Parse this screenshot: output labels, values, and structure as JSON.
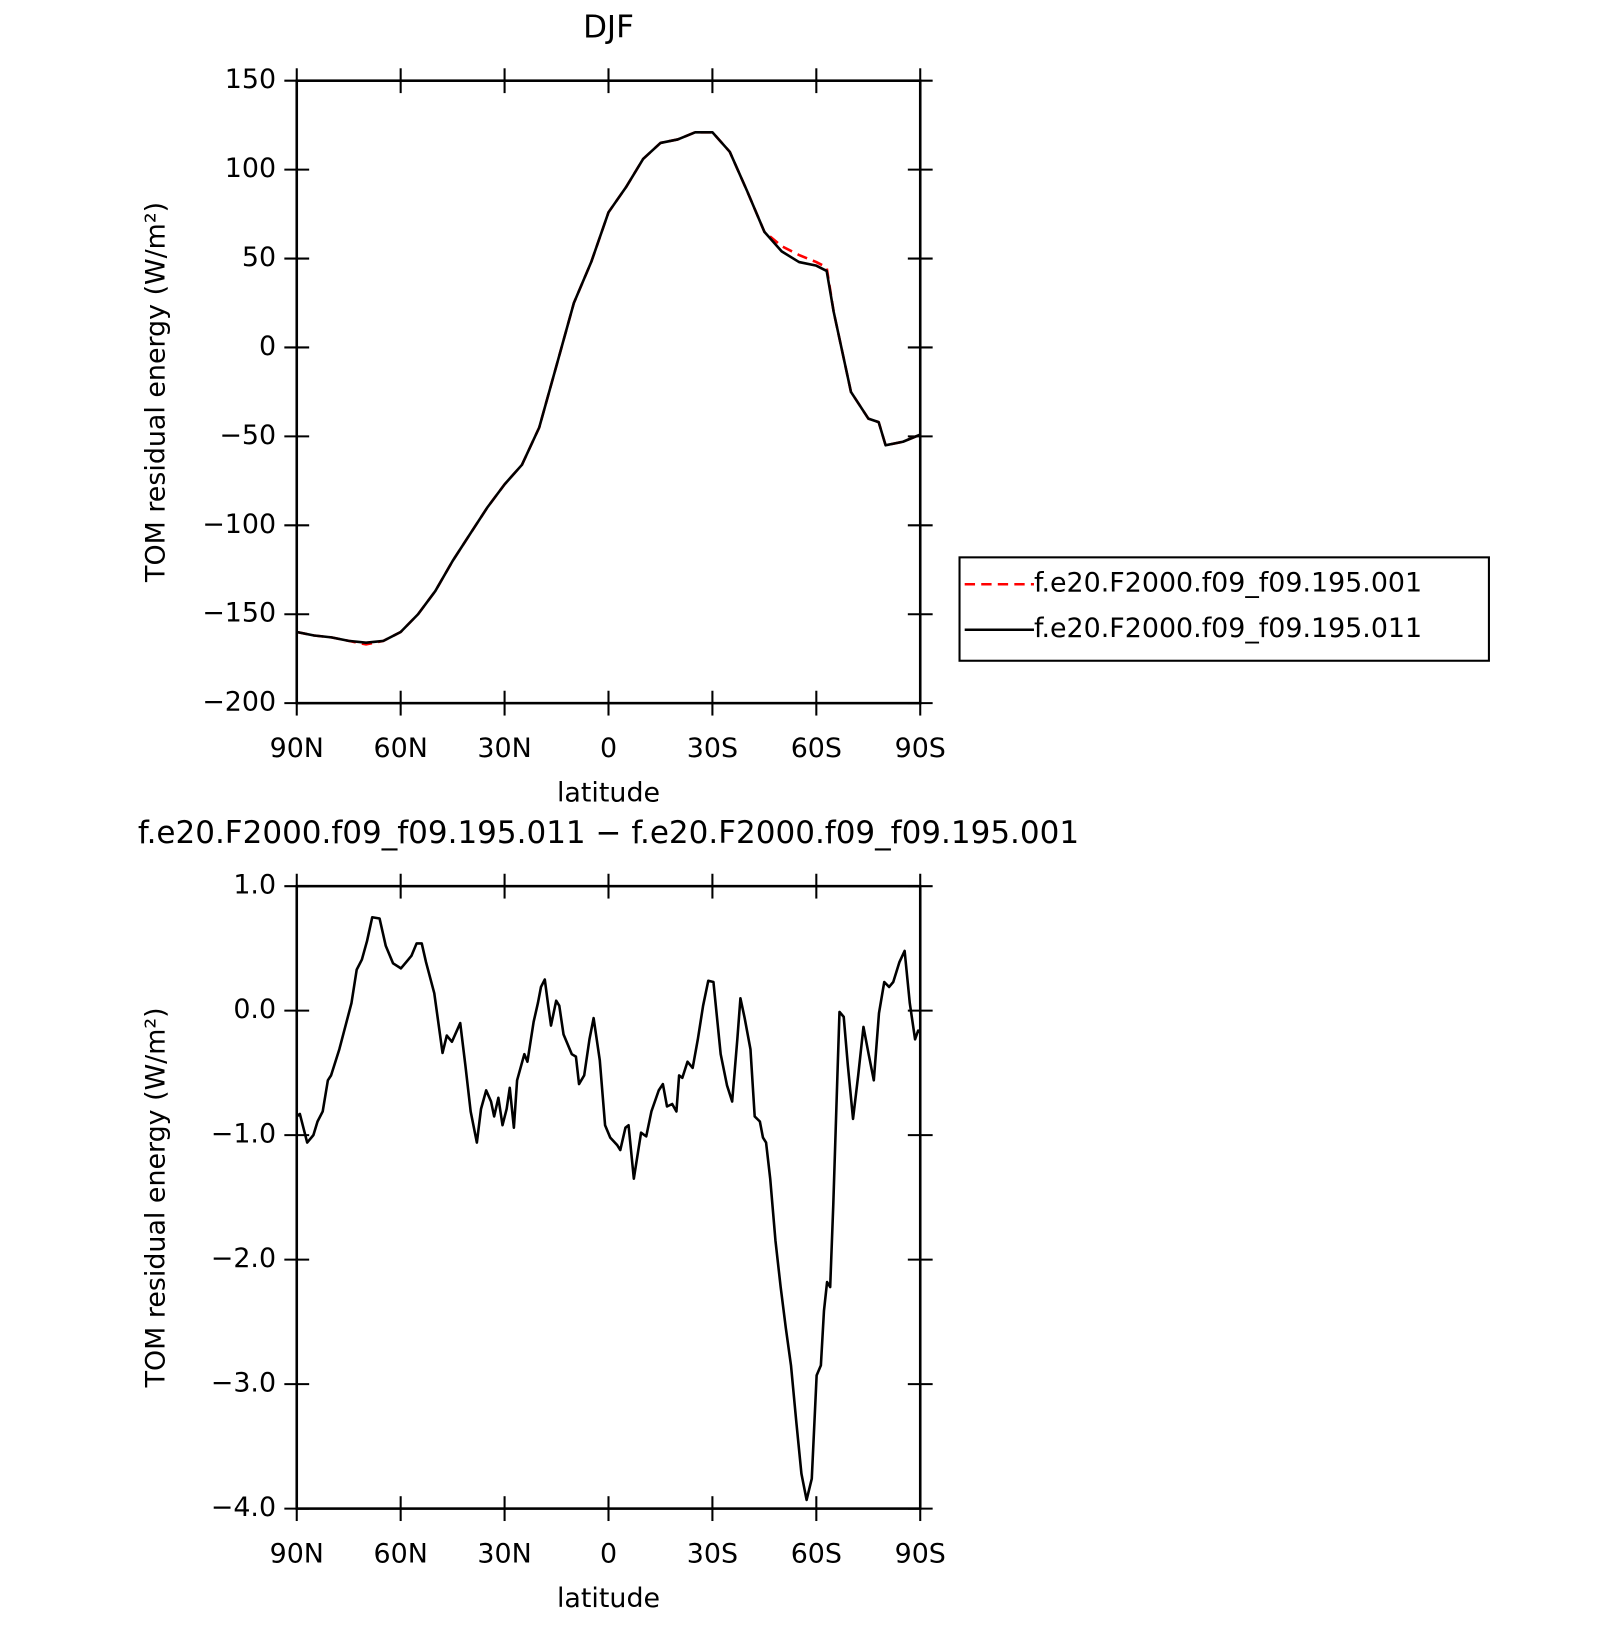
{
  "chart_data": [
    {
      "type": "line",
      "title": "DJF",
      "xlabel": "latitude",
      "ylabel": "TOM residual energy (W/m²)",
      "xlim": [
        90,
        -90
      ],
      "xticks": [
        {
          "value": 90,
          "label": "90N"
        },
        {
          "value": 60,
          "label": "60N"
        },
        {
          "value": 30,
          "label": "30N"
        },
        0,
        {
          "value": -30,
          "label": "30S"
        },
        {
          "value": -60,
          "label": "60S"
        },
        {
          "value": -90,
          "label": "90S"
        }
      ],
      "ylim": [
        -200,
        150
      ],
      "yticks": [
        {
          "value": -200,
          "label": "−200"
        },
        {
          "value": -150,
          "label": "−150"
        },
        {
          "value": -100,
          "label": "−100"
        },
        {
          "value": -50,
          "label": "−50"
        },
        0,
        50,
        100,
        150
      ],
      "legend": "right",
      "x": [
        90,
        85,
        80,
        75,
        70,
        65,
        60,
        55,
        50,
        45,
        40,
        35,
        30,
        25,
        20,
        15,
        10,
        5,
        0,
        -5,
        -10,
        -15,
        -20,
        -25,
        -30,
        -35,
        -40,
        -45,
        -50,
        -55,
        -60,
        -63,
        -65,
        -70,
        -75,
        -78,
        -80,
        -85,
        -90
      ],
      "series": [
        {
          "name": "f.e20.F2000.f09_f09.195.001",
          "color": "#ff0000",
          "line_style": "dashed",
          "values": [
            -160,
            -162,
            -163,
            -165,
            -167,
            -165,
            -160,
            -150,
            -137,
            -120,
            -105,
            -90,
            -77,
            -66,
            -45,
            -10,
            25,
            48,
            76,
            90,
            106,
            115,
            117,
            121,
            121,
            110,
            88,
            65,
            57,
            52,
            48,
            45,
            20,
            -25,
            -40,
            -42,
            -55,
            -53,
            -49
          ]
        },
        {
          "name": "f.e20.F2000.f09_f09.195.011",
          "color": "#000000",
          "line_style": "solid",
          "values": [
            -160,
            -162,
            -163,
            -165,
            -166,
            -165,
            -160,
            -150,
            -137,
            -120,
            -105,
            -90,
            -77,
            -66,
            -45,
            -10,
            25,
            48,
            76,
            90,
            106,
            115,
            117,
            121,
            121,
            110,
            88,
            65,
            54,
            48,
            46,
            43,
            20,
            -25,
            -40,
            -42,
            -55,
            -53,
            -49
          ]
        }
      ]
    },
    {
      "type": "line",
      "title": "f.e20.F2000.f09_f09.195.011 − f.e20.F2000.f09_f09.195.001",
      "xlabel": "latitude",
      "ylabel": "TOM residual energy (W/m²)",
      "xlim": [
        90,
        -90
      ],
      "xticks": [
        {
          "value": 90,
          "label": "90N"
        },
        {
          "value": 60,
          "label": "60N"
        },
        {
          "value": 30,
          "label": "30N"
        },
        0,
        {
          "value": -30,
          "label": "30S"
        },
        {
          "value": -60,
          "label": "60S"
        },
        {
          "value": -90,
          "label": "90S"
        }
      ],
      "ylim": [
        -4,
        1
      ],
      "yticks": [
        {
          "value": -4,
          "label": "−4.0"
        },
        {
          "value": -3,
          "label": "−3.0"
        },
        {
          "value": -2,
          "label": "−2.0"
        },
        {
          "value": -1,
          "label": "−1.0"
        },
        {
          "value": 0,
          "label": "0.0"
        },
        {
          "value": 1,
          "label": "1.0"
        }
      ],
      "x": [
        90,
        89.1,
        87.0,
        85.2,
        84.0,
        82.5,
        81.0,
        80.1,
        77.7,
        74.2,
        72.7,
        71.2,
        69.7,
        68.2,
        66.1,
        64.3,
        62.2,
        59.9,
        58.4,
        56.9,
        55.4,
        53.9,
        52.7,
        50.3,
        47.9,
        46.7,
        45.2,
        42.8,
        41.3,
        39.8,
        38.0,
        36.8,
        35.3,
        33.9,
        33.0,
        31.8,
        30.6,
        29.4,
        28.5,
        27.3,
        26.4,
        24.3,
        23.4,
        21.6,
        20.4,
        19.5,
        18.4,
        17.5,
        16.6,
        15.1,
        14.2,
        13.0,
        10.6,
        9.4,
        8.5,
        7.0,
        5.5,
        4.3,
        2.5,
        1.0,
        -0.5,
        -2.5,
        -3.4,
        -4.9,
        -5.8,
        -7.3,
        -9.4,
        -10.9,
        -12.4,
        -14.5,
        -15.7,
        -16.9,
        -18.4,
        -19.6,
        -20.4,
        -21.3,
        -22.8,
        -24.3,
        -25.8,
        -27.3,
        -28.8,
        -30.3,
        -32.4,
        -34.2,
        -35.7,
        -37.2,
        -38.1,
        -39.3,
        -41.0,
        -42.2,
        -43.7,
        -44.6,
        -45.5,
        -46.7,
        -48.2,
        -49.7,
        -51.2,
        -52.7,
        -54.2,
        -55.7,
        -57.2,
        -58.7,
        -60.1,
        -61.3,
        -62.2,
        -63.1,
        -64.0,
        -64.9,
        -66.1,
        -66.7,
        -67.9,
        -69.1,
        -70.6,
        -72.1,
        -73.6,
        -75.1,
        -76.6,
        -78.1,
        -79.6,
        -81.0,
        -82.2,
        -84.0,
        -85.5,
        -87.0,
        -88.5,
        -89.4,
        -90
      ],
      "series": [
        {
          "name": "f.e20.F2000.f09_f09.195.011 − f.e20.F2000.f09_f09.195.001",
          "color": "#000000",
          "line_style": "solid",
          "values": [
            -0.85,
            -0.83,
            -1.06,
            -1.0,
            -0.89,
            -0.81,
            -0.56,
            -0.52,
            -0.31,
            0.06,
            0.33,
            0.41,
            0.56,
            0.75,
            0.74,
            0.52,
            0.38,
            0.34,
            0.39,
            0.44,
            0.54,
            0.54,
            0.39,
            0.14,
            -0.34,
            -0.2,
            -0.25,
            -0.1,
            -0.44,
            -0.81,
            -1.06,
            -0.79,
            -0.64,
            -0.73,
            -0.85,
            -0.7,
            -0.92,
            -0.79,
            -0.62,
            -0.94,
            -0.56,
            -0.35,
            -0.41,
            -0.09,
            0.06,
            0.19,
            0.25,
            0.06,
            -0.12,
            0.08,
            0.04,
            -0.19,
            -0.35,
            -0.37,
            -0.59,
            -0.52,
            -0.23,
            -0.06,
            -0.4,
            -0.92,
            -1.02,
            -1.08,
            -1.12,
            -0.94,
            -0.92,
            -1.35,
            -0.98,
            -1.01,
            -0.81,
            -0.64,
            -0.59,
            -0.77,
            -0.75,
            -0.81,
            -0.52,
            -0.54,
            -0.41,
            -0.46,
            -0.23,
            0.04,
            0.24,
            0.23,
            -0.35,
            -0.6,
            -0.73,
            -0.23,
            0.1,
            -0.06,
            -0.31,
            -0.85,
            -0.89,
            -1.02,
            -1.06,
            -1.35,
            -1.85,
            -2.22,
            -2.55,
            -2.85,
            -3.3,
            -3.72,
            -3.93,
            -3.76,
            -2.93,
            -2.85,
            -2.41,
            -2.18,
            -2.22,
            -1.56,
            -0.52,
            -0.01,
            -0.05,
            -0.44,
            -0.87,
            -0.52,
            -0.13,
            -0.35,
            -0.56,
            -0.02,
            0.23,
            0.19,
            0.23,
            0.39,
            0.48,
            0.06,
            -0.23,
            -0.16,
            -0.17
          ]
        }
      ]
    }
  ]
}
